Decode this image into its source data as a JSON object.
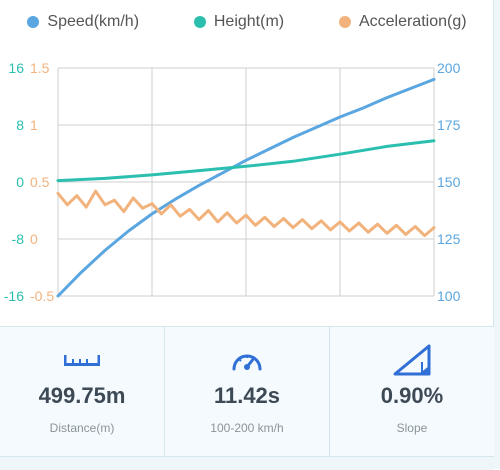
{
  "legend": [
    {
      "label": "Speed(km/h)",
      "color": "#5aa6e0"
    },
    {
      "label": "Height(m)",
      "color": "#2bbfb0"
    },
    {
      "label": "Acceleration(g)",
      "color": "#f2b27c"
    }
  ],
  "chart_data": {
    "type": "line",
    "grid": true,
    "axes": {
      "left_height": {
        "ticks": [
          "16",
          "8",
          "0",
          "-8",
          "-16"
        ],
        "range": [
          -16,
          16
        ],
        "color": "#2bbfb0"
      },
      "left_acceleration": {
        "ticks": [
          "1.5",
          "1",
          "0.5",
          "0",
          "-0.5"
        ],
        "range": [
          -0.5,
          1.5
        ],
        "color": "#f2b27c"
      },
      "right_speed": {
        "ticks": [
          "200",
          "175",
          "150",
          "125",
          "100"
        ],
        "range": [
          100,
          200
        ],
        "color": "#5aa6e0"
      }
    },
    "x_range": [
      0,
      4
    ],
    "series": [
      {
        "name": "Speed(km/h)",
        "axis": "right_speed",
        "color": "#5aa6e0",
        "x": [
          0,
          0.25,
          0.5,
          0.75,
          1,
          1.25,
          1.5,
          1.75,
          2,
          2.25,
          2.5,
          2.75,
          3,
          3.25,
          3.5,
          3.75,
          4
        ],
        "y": [
          100,
          110.5,
          120,
          128.5,
          136,
          142.5,
          148.5,
          154,
          159.5,
          164.5,
          169.5,
          174,
          178.5,
          182.5,
          187,
          191,
          195
        ]
      },
      {
        "name": "Height(m)",
        "axis": "left_height",
        "color": "#2bbfb0",
        "x": [
          0,
          0.5,
          1,
          1.5,
          2,
          2.5,
          3,
          3.5,
          4
        ],
        "y": [
          0.2,
          0.5,
          1.0,
          1.6,
          2.2,
          2.9,
          3.9,
          5.0,
          5.8
        ]
      },
      {
        "name": "Acceleration(g)",
        "axis": "left_acceleration",
        "color": "#f2b27c",
        "x": [
          0,
          0.1,
          0.2,
          0.3,
          0.4,
          0.5,
          0.6,
          0.7,
          0.8,
          0.9,
          1.0,
          1.1,
          1.2,
          1.3,
          1.4,
          1.5,
          1.6,
          1.7,
          1.8,
          1.9,
          2.0,
          2.1,
          2.2,
          2.3,
          2.4,
          2.5,
          2.6,
          2.7,
          2.8,
          2.9,
          3.0,
          3.1,
          3.2,
          3.3,
          3.4,
          3.5,
          3.6,
          3.7,
          3.8,
          3.9,
          4.0
        ],
        "y": [
          0.4,
          0.3,
          0.38,
          0.28,
          0.42,
          0.3,
          0.34,
          0.24,
          0.36,
          0.27,
          0.31,
          0.22,
          0.3,
          0.2,
          0.26,
          0.17,
          0.25,
          0.15,
          0.23,
          0.14,
          0.21,
          0.12,
          0.19,
          0.11,
          0.18,
          0.1,
          0.17,
          0.09,
          0.16,
          0.08,
          0.15,
          0.07,
          0.14,
          0.06,
          0.13,
          0.05,
          0.12,
          0.04,
          0.11,
          0.03,
          0.1
        ]
      }
    ]
  },
  "stats": [
    {
      "icon": "ruler-icon",
      "value": "499.75m",
      "label": "Distance(m)"
    },
    {
      "icon": "speedometer-icon",
      "value": "11.42s",
      "label": "100-200 km/h"
    },
    {
      "icon": "slope-icon",
      "value": "0.90%",
      "label": "Slope"
    }
  ],
  "colors": {
    "accent": "#2f6fd6",
    "grid": "#cfcfcf"
  }
}
